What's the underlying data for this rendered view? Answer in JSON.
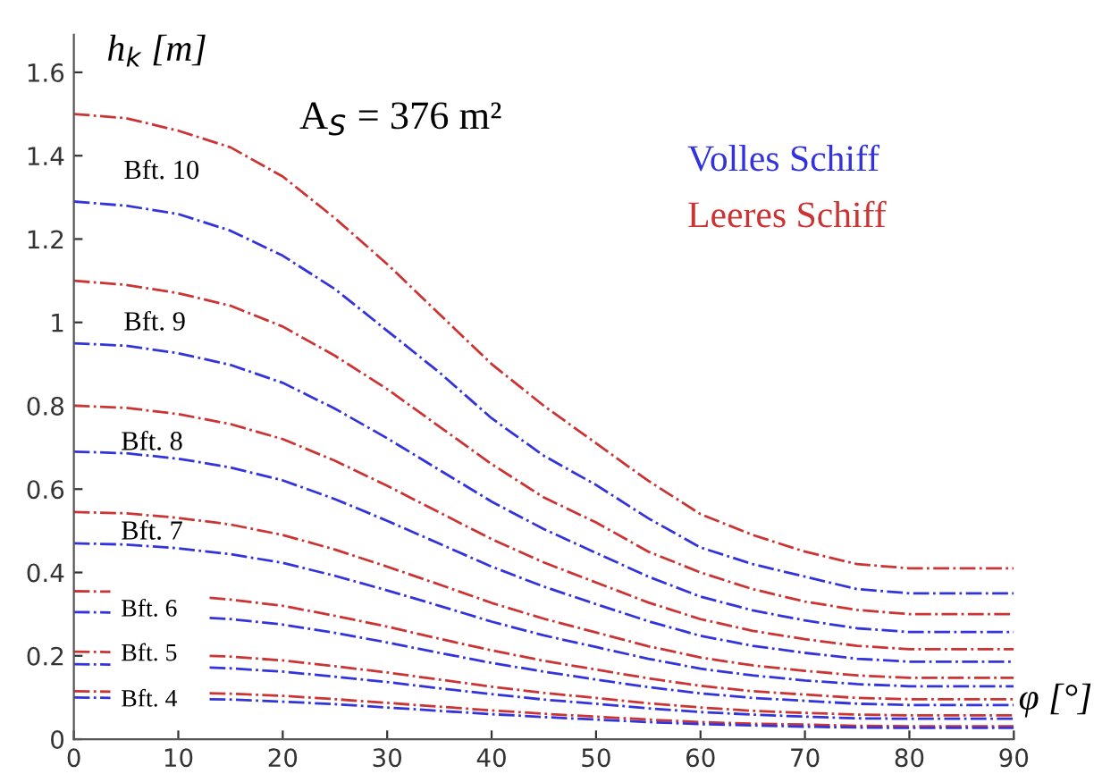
{
  "chart_data": {
    "type": "line",
    "ylabel": "h$_{k}$ [m]",
    "xlabel": "φ [°]",
    "x": [
      0,
      5,
      10,
      15,
      20,
      25,
      30,
      35,
      40,
      45,
      50,
      55,
      60,
      65,
      70,
      75,
      80,
      85,
      90
    ],
    "xlim": [
      0,
      90
    ],
    "xticks": [
      0,
      10,
      20,
      30,
      40,
      50,
      60,
      70,
      80,
      90
    ],
    "ylim": [
      0,
      1.69
    ],
    "yticks": [
      0,
      0.2,
      0.4,
      0.6,
      0.8,
      1,
      1.2,
      1.4,
      1.6
    ],
    "grid": false,
    "legend": "right",
    "line_style": "dashdot",
    "marker": "none",
    "series": [
      {
        "name": "Volles Schiff",
        "color": "#3333dd",
        "values": [
          1.29,
          1.28,
          1.26,
          1.22,
          1.16,
          1.08,
          0.98,
          0.88,
          0.77,
          0.68,
          0.61,
          0.53,
          0.46,
          0.42,
          0.39,
          0.36,
          0.35,
          0.35,
          0.35
        ]
      },
      {
        "name": "Leeres Schiff",
        "color": "#cc3333",
        "values": [
          1.5,
          1.49,
          1.46,
          1.42,
          1.35,
          1.25,
          1.14,
          1.02,
          0.9,
          0.8,
          0.71,
          0.62,
          0.54,
          0.49,
          0.45,
          0.42,
          0.41,
          0.41,
          0.41
        ]
      },
      {
        "color": "#cc3333",
        "values": [
          1.1,
          1.09,
          1.07,
          1.04,
          0.99,
          0.92,
          0.84,
          0.75,
          0.66,
          0.58,
          0.52,
          0.45,
          0.4,
          0.36,
          0.33,
          0.31,
          0.3,
          0.3,
          0.3
        ]
      },
      {
        "color": "#3333dd",
        "values": [
          0.95,
          0.944,
          0.926,
          0.898,
          0.855,
          0.793,
          0.722,
          0.646,
          0.57,
          0.504,
          0.447,
          0.39,
          0.342,
          0.309,
          0.285,
          0.266,
          0.257,
          0.257,
          0.257
        ]
      },
      {
        "color": "#cc3333",
        "values": [
          0.8,
          0.795,
          0.78,
          0.756,
          0.72,
          0.668,
          0.608,
          0.544,
          0.48,
          0.424,
          0.376,
          0.328,
          0.288,
          0.26,
          0.24,
          0.224,
          0.216,
          0.216,
          0.216
        ]
      },
      {
        "color": "#3333dd",
        "values": [
          0.69,
          0.686,
          0.673,
          0.652,
          0.621,
          0.576,
          0.524,
          0.469,
          0.414,
          0.366,
          0.324,
          0.283,
          0.248,
          0.224,
          0.207,
          0.193,
          0.186,
          0.186,
          0.186
        ]
      },
      {
        "color": "#cc3333",
        "values": [
          0.545,
          0.542,
          0.531,
          0.515,
          0.49,
          0.455,
          0.414,
          0.371,
          0.327,
          0.289,
          0.256,
          0.223,
          0.196,
          0.177,
          0.164,
          0.153,
          0.147,
          0.147,
          0.147
        ]
      },
      {
        "color": "#3333dd",
        "values": [
          0.47,
          0.467,
          0.458,
          0.444,
          0.423,
          0.392,
          0.357,
          0.32,
          0.282,
          0.249,
          0.221,
          0.193,
          0.169,
          0.153,
          0.141,
          0.132,
          0.127,
          0.127,
          0.127
        ]
      },
      {
        "color": "#cc3333",
        "x": [
          0,
          3.5,
          5,
          10,
          13,
          15,
          20,
          25,
          30,
          35,
          40,
          45,
          50,
          55,
          60,
          65,
          70,
          75,
          80,
          85,
          90
        ],
        "values": [
          0.355,
          0.354,
          null,
          null,
          0.339,
          0.335,
          0.32,
          0.296,
          0.27,
          0.241,
          0.213,
          0.188,
          0.167,
          0.146,
          0.128,
          0.115,
          0.107,
          0.099,
          0.096,
          0.096,
          0.096
        ]
      },
      {
        "color": "#3333dd",
        "x": [
          0,
          3.5,
          5,
          10,
          13,
          15,
          20,
          25,
          30,
          35,
          40,
          45,
          50,
          55,
          60,
          65,
          70,
          75,
          80,
          85,
          90
        ],
        "values": [
          0.305,
          0.304,
          null,
          null,
          0.291,
          0.288,
          0.275,
          0.255,
          0.232,
          0.207,
          0.183,
          0.162,
          0.143,
          0.125,
          0.11,
          0.099,
          0.092,
          0.085,
          0.082,
          0.082,
          0.082
        ]
      },
      {
        "color": "#cc3333",
        "x": [
          0,
          3.5,
          5,
          10,
          13,
          15,
          20,
          25,
          30,
          35,
          40,
          45,
          50,
          55,
          60,
          65,
          70,
          75,
          80,
          85,
          90
        ],
        "values": [
          0.21,
          0.209,
          null,
          null,
          0.2,
          0.198,
          0.189,
          0.175,
          0.16,
          0.143,
          0.126,
          0.111,
          0.099,
          0.086,
          0.076,
          0.068,
          0.063,
          0.059,
          0.057,
          0.057,
          0.057
        ]
      },
      {
        "color": "#3333dd",
        "x": [
          0,
          3.5,
          5,
          10,
          13,
          15,
          20,
          25,
          30,
          35,
          40,
          45,
          50,
          55,
          60,
          65,
          70,
          75,
          80,
          85,
          90
        ],
        "values": [
          0.18,
          0.179,
          null,
          null,
          0.172,
          0.17,
          0.162,
          0.15,
          0.137,
          0.122,
          0.108,
          0.095,
          0.085,
          0.074,
          0.065,
          0.059,
          0.054,
          0.05,
          0.049,
          0.049,
          0.049
        ]
      },
      {
        "color": "#cc3333",
        "x": [
          0,
          3.5,
          5,
          10,
          13,
          15,
          20,
          25,
          30,
          35,
          40,
          45,
          50,
          55,
          60,
          65,
          70,
          75,
          80,
          85,
          90
        ],
        "values": [
          0.115,
          0.114,
          null,
          null,
          0.11,
          0.109,
          0.104,
          0.096,
          0.087,
          0.078,
          0.069,
          0.061,
          0.054,
          0.047,
          0.041,
          0.037,
          0.035,
          0.032,
          0.031,
          0.031,
          0.031
        ]
      },
      {
        "color": "#3333dd",
        "x": [
          0,
          3.5,
          5,
          10,
          13,
          15,
          20,
          25,
          30,
          35,
          40,
          45,
          50,
          55,
          60,
          65,
          70,
          75,
          80,
          85,
          90
        ],
        "values": [
          0.1,
          0.099,
          null,
          null,
          0.096,
          0.095,
          0.09,
          0.084,
          0.076,
          0.068,
          0.06,
          0.053,
          0.047,
          0.041,
          0.036,
          0.033,
          0.03,
          0.028,
          0.027,
          0.027,
          0.027
        ]
      }
    ],
    "annotations": [
      "A$_{S}$ = 376 m²",
      "Bft. 10",
      "Bft. 9",
      "Bft. 8",
      "Bft. 7",
      "Bft. 6",
      "Bft. 5",
      "Bft. 4"
    ]
  }
}
